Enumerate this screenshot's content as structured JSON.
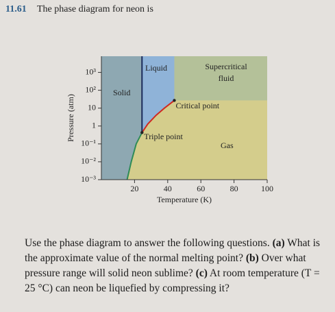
{
  "problem_number": "11.61",
  "problem_heading": "The phase diagram for neon is",
  "question": {
    "intro": "Use the phase diagram to answer the following questions.",
    "parts": [
      {
        "label": "(a)",
        "text": "What is the approximate value of the normal melting point?"
      },
      {
        "label": "(b)",
        "text": "Over what pressure range will solid neon sublime?"
      },
      {
        "label": "(c)",
        "text": "At room temperature (T = 25 °C) can neon be liquefied by compressing it?"
      }
    ]
  },
  "chart_data": {
    "type": "phase-diagram",
    "xlabel": "Temperature (K)",
    "ylabel": "Pressure (atm)",
    "xlim": [
      0,
      100
    ],
    "xticks": [
      20,
      40,
      60,
      80,
      100
    ],
    "ylim": [
      0.001,
      8000
    ],
    "log_y": true,
    "yticks": [
      {
        "value": 1000,
        "label": "10³"
      },
      {
        "value": 100,
        "label": "10²"
      },
      10,
      1,
      {
        "value": 0.1,
        "label": "10⁻¹"
      },
      {
        "value": 0.01,
        "label": "10⁻²"
      },
      {
        "value": 0.001,
        "label": "10⁻³"
      }
    ],
    "series": [
      {
        "name": "sublimation",
        "color": "#2e8b57",
        "x": [
          15.5,
          18,
          21,
          24.5
        ],
        "values": [
          0.001,
          0.01,
          0.1,
          0.43
        ]
      },
      {
        "name": "vaporization",
        "color": "#d02a20",
        "x": [
          24.5,
          28,
          33,
          38,
          44
        ],
        "values": [
          0.43,
          1.3,
          4,
          10,
          27
        ]
      },
      {
        "name": "melting",
        "color": "#1a2a5a",
        "x": [
          24.5,
          24.5
        ],
        "values": [
          0.43,
          8000
        ]
      }
    ],
    "region_colors": {
      "solid": "#8ea8b2",
      "liquid": "#8fb3d8",
      "supercritical": "#b4c199",
      "gas": "#d4cd8c"
    },
    "points": [
      {
        "label": "Triple point",
        "x": 24.5,
        "y": 0.43
      },
      {
        "label": "Critical point",
        "x": 44,
        "y": 27
      }
    ],
    "regions": [
      {
        "label": "Solid"
      },
      {
        "label": "Liquid"
      },
      {
        "label": [
          "Supercritical",
          "fluid"
        ]
      },
      {
        "label": "Gas"
      }
    ]
  }
}
